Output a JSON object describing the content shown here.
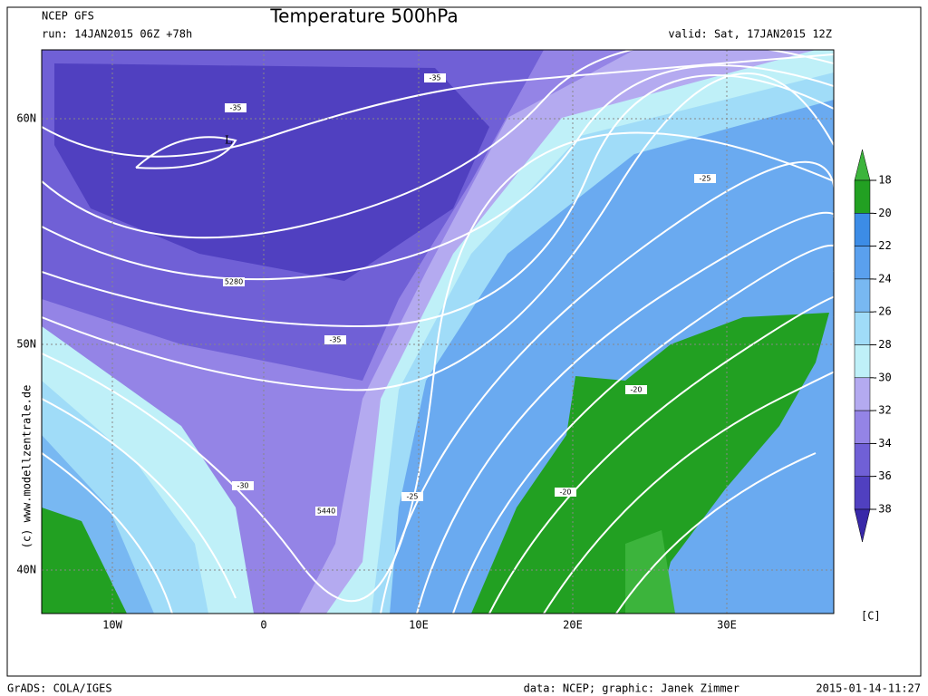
{
  "header": {
    "model": "NCEP GFS",
    "run": "run: 14JAN2015 06Z +78h",
    "title": "Temperature 500hPa",
    "valid": "valid: Sat, 17JAN2015 12Z"
  },
  "axes": {
    "lat_labels": [
      "60N",
      "50N",
      "40N"
    ],
    "lon_labels": [
      "10W",
      "0",
      "10E",
      "20E",
      "30E"
    ]
  },
  "map": {
    "contour_labels": [
      "-35",
      "-35",
      "-35",
      "-25",
      "-20",
      "-20",
      "-30",
      "-25",
      "5280",
      "5440"
    ],
    "low_marker": "L",
    "watermark": "(c)  www.modellzentrale.de"
  },
  "colorbar": {
    "levels": [
      -18,
      -20,
      -22,
      -24,
      -26,
      -28,
      -30,
      -32,
      -34,
      -36,
      -38
    ],
    "colors": [
      "#3cb43c",
      "#22a022",
      "#3c8ce6",
      "#5aa0ee",
      "#78b8f2",
      "#a0dcf8",
      "#bff0f8",
      "#b4aaf0",
      "#9484e6",
      "#7060d6",
      "#5040c0",
      "#3828a8"
    ],
    "unit": "[C]"
  },
  "footer": {
    "software": "GrADS: COLA/IGES",
    "credits": "data: NCEP; graphic: Janek Zimmer",
    "timestamp": "2015-01-14-11:27"
  }
}
